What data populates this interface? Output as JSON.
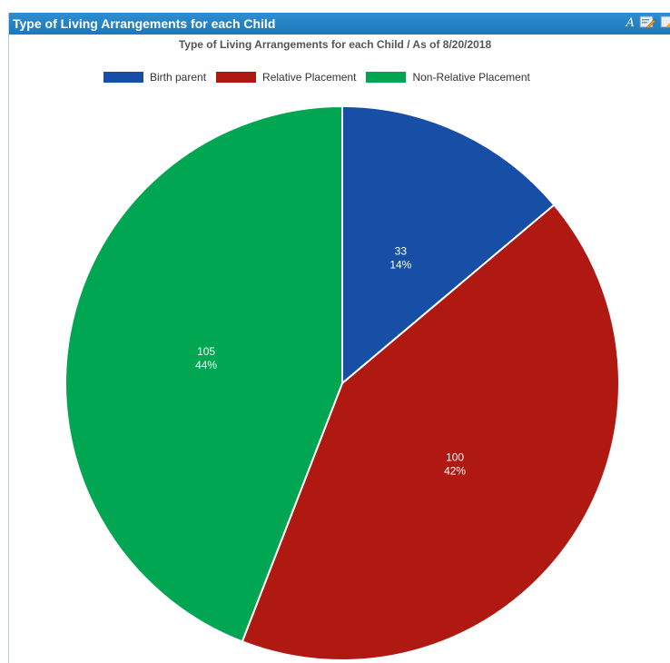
{
  "panel": {
    "title": "Type of Living Arrangements for each Child"
  },
  "header_tools": [
    {
      "name": "font-tool-icon",
      "glyph": "A"
    },
    {
      "name": "edit-chart-icon"
    },
    {
      "name": "export-icon"
    }
  ],
  "chart_data": {
    "type": "pie",
    "title": "Type of Living Arrangements for each Child / As of 8/20/2018",
    "legend_position": "top",
    "slices": [
      {
        "label": "Birth parent",
        "value": 33,
        "percent": "14%",
        "color": "#174ea6"
      },
      {
        "label": "Relative Placement",
        "value": 100,
        "percent": "42%",
        "color": "#b01911"
      },
      {
        "label": "Non-Relative Placement",
        "value": 105,
        "percent": "44%",
        "color": "#00a651"
      }
    ]
  }
}
